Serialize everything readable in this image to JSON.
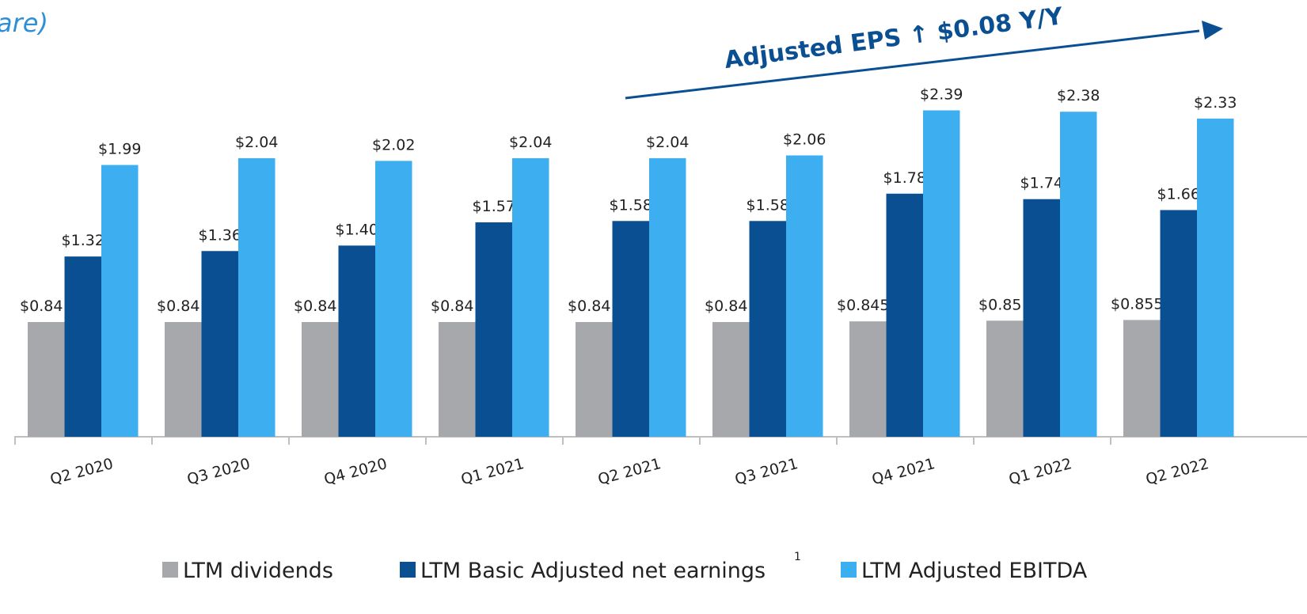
{
  "chart_data": {
    "type": "bar",
    "title": "are)",
    "annotation": "Adjusted EPS ↑ $0.08 Y/Y",
    "footnote_mark": "1",
    "categories": [
      "Q2 2020",
      "Q3 2020",
      "Q4 2020",
      "Q1 2021",
      "Q2 2021",
      "Q3 2021",
      "Q4 2021",
      "Q1 2022",
      "Q2 2022"
    ],
    "series": [
      {
        "name": "LTM dividends",
        "color": "#a7a8ac",
        "values": [
          0.84,
          0.84,
          0.84,
          0.84,
          0.84,
          0.84,
          0.845,
          0.85,
          0.855
        ],
        "value_labels": [
          "$0.84",
          "$0.84",
          "$0.84",
          "$0.84",
          "$0.84",
          "$0.84",
          "$0.845",
          "$0.85",
          "$0.855"
        ]
      },
      {
        "name": "LTM Basic Adjusted net earnings",
        "color": "#0b4f93",
        "values": [
          1.32,
          1.36,
          1.4,
          1.57,
          1.58,
          1.58,
          1.78,
          1.74,
          1.66
        ],
        "value_labels": [
          "$1.32",
          "$1.36",
          "$1.40",
          "$1.57",
          "$1.58",
          "$1.58",
          "$1.78",
          "$1.74",
          "$1.66"
        ]
      },
      {
        "name": "LTM Adjusted EBITDA",
        "color": "#3daef0",
        "values": [
          1.99,
          2.04,
          2.02,
          2.04,
          2.04,
          2.06,
          2.39,
          2.38,
          2.33
        ],
        "value_labels": [
          "$1.99",
          "$2.04",
          "$2.02",
          "$2.04",
          "$2.04",
          "$2.06",
          "$2.39",
          "$2.38",
          "$2.33"
        ]
      }
    ]
  }
}
